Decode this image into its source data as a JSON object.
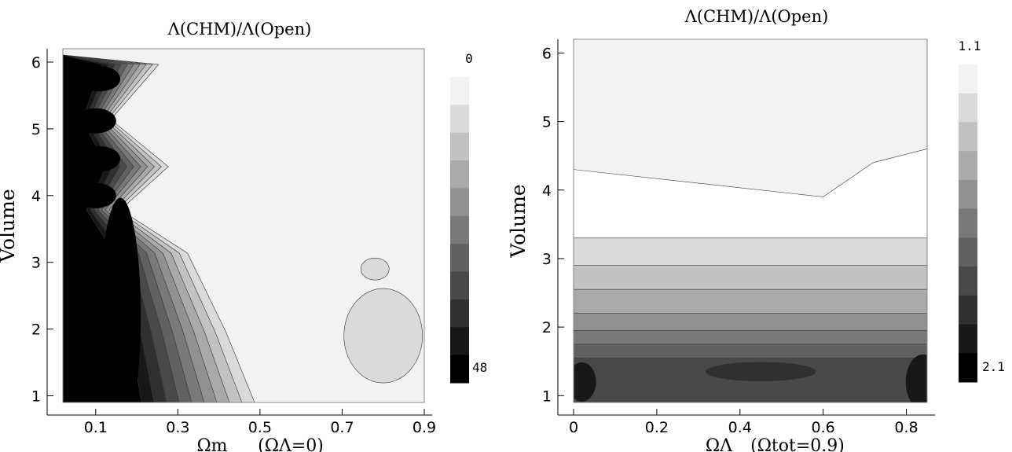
{
  "chart_data": [
    {
      "type": "contour",
      "title": "Λ(CHM)/Λ(Open)",
      "ylabel": "Volume",
      "xlabel": "Ωm",
      "xlabel_cond": "(ΩΛ=0)",
      "xticks": [
        "0.1",
        "0.3",
        "0.5",
        "0.7",
        "0.9"
      ],
      "yticks": [
        "1",
        "2",
        "3",
        "4",
        "5",
        "6"
      ],
      "xlim": [
        0.02,
        0.9
      ],
      "ylim": [
        0.9,
        6.2
      ],
      "colorbar": {
        "top_label": "0",
        "bottom_label": "48",
        "levels": 11,
        "top_color": "#f2f2f2",
        "bottom_color": "#000000"
      },
      "blobs": [
        {
          "x": 0.11,
          "y": 5.75,
          "level": 10
        },
        {
          "x": 0.1,
          "y": 5.12,
          "level": 10
        },
        {
          "x": 0.11,
          "y": 4.55,
          "level": 10
        },
        {
          "x": 0.1,
          "y": 4.0,
          "level": 10
        },
        {
          "x": 0.16,
          "y": 2.2,
          "level": 10
        }
      ]
    },
    {
      "type": "contour",
      "title": "Λ(CHM)/Λ(Open)",
      "ylabel": "Volume",
      "xlabel": "ΩΛ",
      "xlabel_cond": "(Ωtot=0.9)",
      "xticks": [
        "0",
        "0.2",
        "0.4",
        "0.6",
        "0.8"
      ],
      "yticks": [
        "1",
        "2",
        "3",
        "4",
        "5",
        "6"
      ],
      "xlim": [
        0,
        0.85
      ],
      "ylim": [
        0.9,
        6.2
      ],
      "colorbar": {
        "top_label": "1.1",
        "bottom_label": "2.1",
        "levels": 11,
        "top_color": "#f2f2f2",
        "bottom_color": "#000000"
      },
      "bands": [
        {
          "y": 3.3,
          "level": 1
        },
        {
          "y": 2.9,
          "level": 2
        },
        {
          "y": 2.55,
          "level": 3
        },
        {
          "y": 2.2,
          "level": 4
        },
        {
          "y": 1.95,
          "level": 5
        },
        {
          "y": 1.75,
          "level": 6
        },
        {
          "y": 1.55,
          "level": 7
        }
      ]
    }
  ]
}
